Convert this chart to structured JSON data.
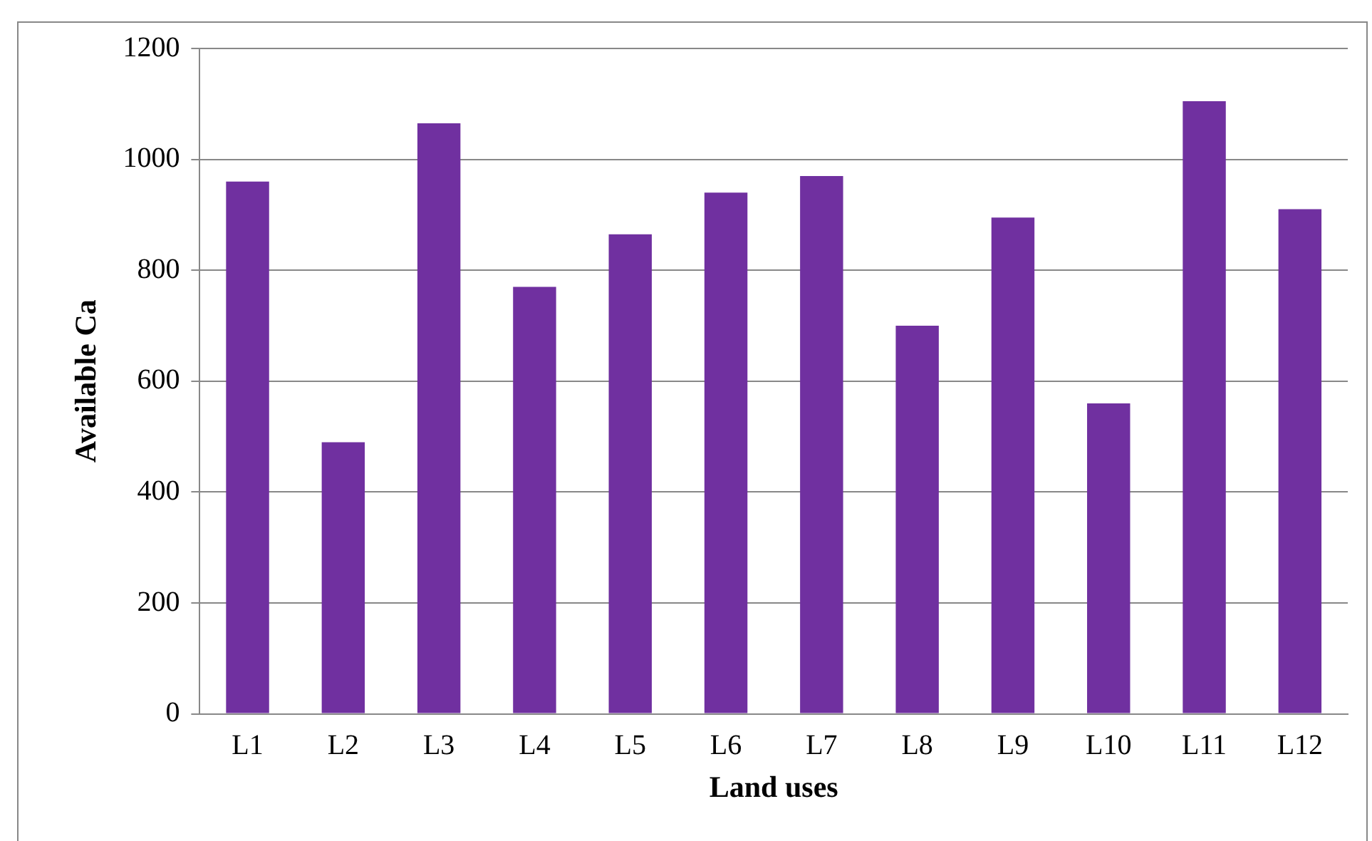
{
  "chart_data": {
    "type": "bar",
    "xlabel": "Land uses",
    "ylabel": "Available Ca",
    "categories": [
      "L1",
      "L2",
      "L3",
      "L4",
      "L5",
      "L6",
      "L7",
      "L8",
      "L9",
      "L10",
      "L11",
      "L12"
    ],
    "values": [
      960,
      490,
      1065,
      770,
      865,
      940,
      970,
      700,
      895,
      560,
      1105,
      910
    ],
    "color": "#7030a0",
    "ylim": [
      0,
      1200
    ],
    "yticks": [
      0,
      200,
      400,
      600,
      800,
      1000,
      1200
    ],
    "grid": "y",
    "legend": false
  }
}
